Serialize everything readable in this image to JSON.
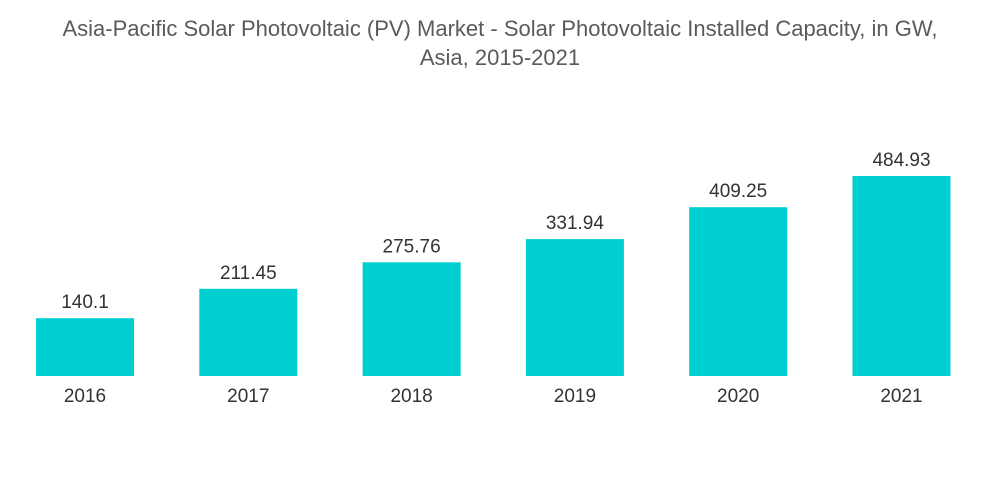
{
  "chart_data": {
    "type": "bar",
    "title_lines": [
      "Asia-Pacific Solar Photovoltaic (PV) Market - Solar Photovoltaic Installed Capacity, in GW,",
      "Asia, 2015-2021"
    ],
    "categories": [
      "2016",
      "2017",
      "2018",
      "2019",
      "2020",
      "2021"
    ],
    "values": [
      140.1,
      211.45,
      275.76,
      331.94,
      409.25,
      484.93
    ],
    "value_labels": [
      "140.1",
      "211.45",
      "275.76",
      "331.94",
      "409.25",
      "484.93"
    ],
    "xlabel": "",
    "ylabel": "",
    "ylim": [
      0,
      484.93
    ],
    "grid": false,
    "legend": "none",
    "bar_color": "#00cfd1"
  }
}
